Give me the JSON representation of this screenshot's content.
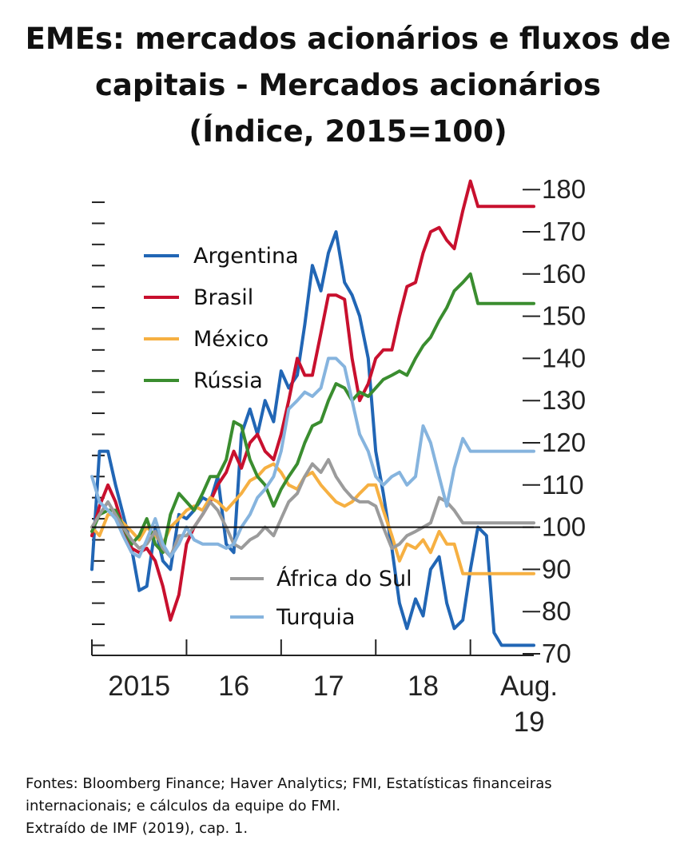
{
  "title_lines": [
    "EMEs: mercados acionários e fluxos de",
    "capitais - Mercados acionários",
    "(Índice, 2015=100)"
  ],
  "source_lines": [
    "Fontes: Bloomberg Finance; Haver Analytics; FMI, Estatísticas financeiras",
    "internacionais; e cálculos da equipe do FMI.",
    "Extraído de IMF (2019), cap. 1."
  ],
  "chart_data": {
    "type": "line",
    "x_tick_labels": [
      "2015",
      "16",
      "17",
      "18",
      "Aug.",
      "19"
    ],
    "x_range": [
      2015.0,
      2019.67
    ],
    "y_ticks": [
      70,
      80,
      90,
      100,
      110,
      120,
      130,
      140,
      150,
      160,
      170,
      180
    ],
    "ylim": [
      70,
      183
    ],
    "reference_line": 100,
    "grid": false,
    "legend_upper": [
      "Argentina",
      "Brasil",
      "México",
      "Rússia"
    ],
    "legend_lower": [
      "África do Sul",
      "Turquia"
    ],
    "series": [
      {
        "name": "Argentina",
        "color": "#2166b5",
        "x": [
          2015.0,
          2015.08,
          2015.17,
          2015.25,
          2015.33,
          2015.42,
          2015.5,
          2015.58,
          2015.67,
          2015.75,
          2015.83,
          2015.92,
          2016.0,
          2016.08,
          2016.17,
          2016.25,
          2016.33,
          2016.42,
          2016.5,
          2016.58,
          2016.67,
          2016.75,
          2016.83,
          2016.92,
          2017.0,
          2017.08,
          2017.17,
          2017.25,
          2017.33,
          2017.42,
          2017.5,
          2017.58,
          2017.67,
          2017.75,
          2017.83,
          2017.92,
          2018.0,
          2018.08,
          2018.17,
          2018.25,
          2018.33,
          2018.42,
          2018.5,
          2018.58,
          2018.67,
          2018.75,
          2018.83,
          2018.92,
          2019.0,
          2019.08,
          2019.17,
          2019.25,
          2019.33,
          2019.42,
          2019.5,
          2019.58,
          2019.67
        ],
        "values": [
          90,
          118,
          118,
          110,
          103,
          95,
          85,
          86,
          100,
          92,
          90,
          103,
          102,
          104,
          107,
          106,
          112,
          96,
          94,
          122,
          128,
          122,
          130,
          125,
          137,
          133,
          136,
          148,
          162,
          156,
          165,
          170,
          158,
          155,
          150,
          140,
          118,
          108,
          95,
          82,
          76,
          83,
          79,
          90,
          93,
          82,
          76,
          78,
          90,
          100,
          98,
          75,
          72,
          72,
          72,
          72,
          72
        ]
      },
      {
        "name": "Brasil",
        "color": "#c8102e",
        "x": [
          2015.0,
          2015.08,
          2015.17,
          2015.25,
          2015.33,
          2015.42,
          2015.5,
          2015.58,
          2015.67,
          2015.75,
          2015.83,
          2015.92,
          2016.0,
          2016.08,
          2016.17,
          2016.25,
          2016.33,
          2016.42,
          2016.5,
          2016.58,
          2016.67,
          2016.75,
          2016.83,
          2016.92,
          2017.0,
          2017.08,
          2017.17,
          2017.25,
          2017.33,
          2017.42,
          2017.5,
          2017.58,
          2017.67,
          2017.75,
          2017.83,
          2017.92,
          2018.0,
          2018.08,
          2018.17,
          2018.25,
          2018.33,
          2018.42,
          2018.5,
          2018.58,
          2018.67,
          2018.75,
          2018.83,
          2018.92,
          2019.0,
          2019.08,
          2019.17,
          2019.25,
          2019.33,
          2019.42,
          2019.5,
          2019.58,
          2019.67
        ],
        "values": [
          98,
          105,
          110,
          106,
          100,
          95,
          94,
          95,
          92,
          86,
          78,
          84,
          96,
          100,
          103,
          106,
          110,
          113,
          118,
          114,
          120,
          122,
          118,
          116,
          122,
          130,
          140,
          136,
          136,
          146,
          155,
          155,
          154,
          140,
          130,
          134,
          140,
          142,
          142,
          150,
          157,
          158,
          165,
          170,
          171,
          168,
          166,
          175,
          182,
          176,
          176,
          176,
          176,
          176,
          176,
          176,
          176
        ]
      },
      {
        "name": "México",
        "color": "#f6b042",
        "x": [
          2015.0,
          2015.08,
          2015.17,
          2015.25,
          2015.33,
          2015.42,
          2015.5,
          2015.58,
          2015.67,
          2015.75,
          2015.83,
          2015.92,
          2016.0,
          2016.08,
          2016.17,
          2016.25,
          2016.33,
          2016.42,
          2016.5,
          2016.58,
          2016.67,
          2016.75,
          2016.83,
          2016.92,
          2017.0,
          2017.08,
          2017.17,
          2017.25,
          2017.33,
          2017.42,
          2017.5,
          2017.58,
          2017.67,
          2017.75,
          2017.83,
          2017.92,
          2018.0,
          2018.08,
          2018.17,
          2018.25,
          2018.33,
          2018.42,
          2018.5,
          2018.58,
          2018.67,
          2018.75,
          2018.83,
          2018.92,
          2019.0,
          2019.08,
          2019.17,
          2019.25,
          2019.33,
          2019.42,
          2019.5,
          2019.58,
          2019.67
        ],
        "values": [
          100,
          98,
          103,
          103,
          101,
          99,
          97,
          100,
          98,
          96,
          100,
          102,
          104,
          105,
          104,
          107,
          106,
          104,
          106,
          108,
          111,
          112,
          114,
          115,
          113,
          110,
          109,
          112,
          113,
          110,
          108,
          106,
          105,
          106,
          108,
          110,
          110,
          104,
          98,
          92,
          96,
          95,
          97,
          94,
          99,
          96,
          96,
          89,
          89,
          89,
          89,
          89,
          89,
          89,
          89,
          89,
          89
        ]
      },
      {
        "name": "Rússia",
        "color": "#3a8d2f",
        "x": [
          2015.0,
          2015.08,
          2015.17,
          2015.25,
          2015.33,
          2015.42,
          2015.5,
          2015.58,
          2015.67,
          2015.75,
          2015.83,
          2015.92,
          2016.0,
          2016.08,
          2016.17,
          2016.25,
          2016.33,
          2016.42,
          2016.5,
          2016.58,
          2016.67,
          2016.75,
          2016.83,
          2016.92,
          2017.0,
          2017.08,
          2017.17,
          2017.25,
          2017.33,
          2017.42,
          2017.5,
          2017.58,
          2017.67,
          2017.75,
          2017.83,
          2017.92,
          2018.0,
          2018.08,
          2018.17,
          2018.25,
          2018.33,
          2018.42,
          2018.5,
          2018.58,
          2018.67,
          2018.75,
          2018.83,
          2018.92,
          2019.0,
          2019.08,
          2019.17,
          2019.25,
          2019.33,
          2019.42,
          2019.5,
          2019.58,
          2019.67
        ],
        "values": [
          99,
          103,
          104,
          104,
          100,
          96,
          98,
          102,
          96,
          94,
          103,
          108,
          106,
          104,
          108,
          112,
          112,
          116,
          125,
          124,
          116,
          112,
          110,
          105,
          109,
          112,
          115,
          120,
          124,
          125,
          130,
          134,
          133,
          130,
          132,
          131,
          133,
          135,
          136,
          137,
          136,
          140,
          143,
          145,
          149,
          152,
          156,
          158,
          160,
          153,
          153,
          153,
          153,
          153,
          153,
          153,
          153
        ]
      },
      {
        "name": "África do Sul",
        "color": "#9b9b9b",
        "x": [
          2015.0,
          2015.08,
          2015.17,
          2015.25,
          2015.33,
          2015.42,
          2015.5,
          2015.58,
          2015.67,
          2015.75,
          2015.83,
          2015.92,
          2016.0,
          2016.08,
          2016.17,
          2016.25,
          2016.33,
          2016.42,
          2016.5,
          2016.58,
          2016.67,
          2016.75,
          2016.83,
          2016.92,
          2017.0,
          2017.08,
          2017.17,
          2017.25,
          2017.33,
          2017.42,
          2017.5,
          2017.58,
          2017.67,
          2017.75,
          2017.83,
          2017.92,
          2018.0,
          2018.08,
          2018.17,
          2018.25,
          2018.33,
          2018.42,
          2018.5,
          2018.58,
          2018.67,
          2018.75,
          2018.83,
          2018.92,
          2019.0,
          2019.08,
          2019.17,
          2019.25,
          2019.33,
          2019.42,
          2019.5,
          2019.58,
          2019.67
        ],
        "values": [
          100,
          103,
          106,
          103,
          100,
          97,
          95,
          96,
          99,
          95,
          93,
          98,
          98,
          100,
          103,
          106,
          104,
          100,
          96,
          95,
          97,
          98,
          100,
          98,
          102,
          106,
          108,
          112,
          115,
          113,
          116,
          112,
          109,
          107,
          106,
          106,
          105,
          100,
          95,
          96,
          98,
          99,
          100,
          101,
          107,
          106,
          104,
          101,
          101,
          101,
          101,
          101,
          101,
          101,
          101,
          101,
          101
        ]
      },
      {
        "name": "Turquia",
        "color": "#86b4de",
        "x": [
          2015.0,
          2015.08,
          2015.17,
          2015.25,
          2015.33,
          2015.42,
          2015.5,
          2015.58,
          2015.67,
          2015.75,
          2015.83,
          2015.92,
          2016.0,
          2016.08,
          2016.17,
          2016.25,
          2016.33,
          2016.42,
          2016.5,
          2016.58,
          2016.67,
          2016.75,
          2016.83,
          2016.92,
          2017.0,
          2017.08,
          2017.17,
          2017.25,
          2017.33,
          2017.42,
          2017.5,
          2017.58,
          2017.67,
          2017.75,
          2017.83,
          2017.92,
          2018.0,
          2018.08,
          2018.17,
          2018.25,
          2018.33,
          2018.42,
          2018.5,
          2018.58,
          2018.67,
          2018.75,
          2018.83,
          2018.92,
          2019.0,
          2019.08,
          2019.17,
          2019.25,
          2019.33,
          2019.42,
          2019.5,
          2019.58,
          2019.67
        ],
        "values": [
          112,
          106,
          104,
          102,
          98,
          94,
          93,
          97,
          102,
          96,
          93,
          96,
          100,
          97,
          96,
          96,
          96,
          95,
          96,
          100,
          103,
          107,
          109,
          112,
          118,
          128,
          130,
          132,
          131,
          133,
          140,
          140,
          138,
          130,
          122,
          118,
          112,
          110,
          112,
          113,
          110,
          112,
          124,
          120,
          112,
          105,
          114,
          121,
          118,
          118,
          118,
          118,
          118,
          118,
          118,
          118,
          118
        ]
      }
    ]
  }
}
